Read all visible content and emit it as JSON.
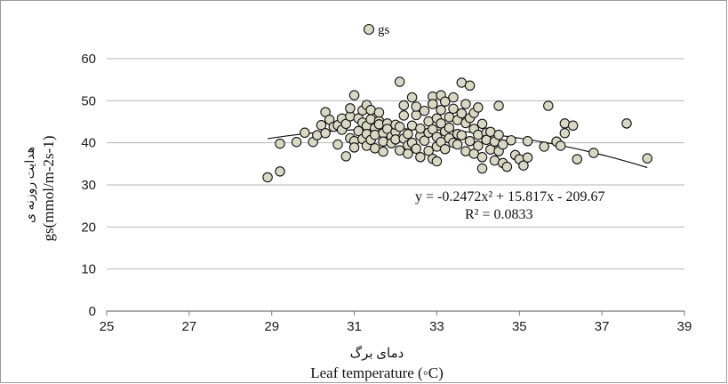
{
  "chart_data": {
    "type": "scatter",
    "title": "",
    "legend": {
      "label": "gs",
      "position": "top-center",
      "marker_color": "#d9d8c4"
    },
    "xlabel": {
      "fa": "دمای برگ",
      "en": "Leaf temperature (◦C)"
    },
    "ylabel": {
      "fa": "هدایت روزنه ی",
      "en": "gs(mmol/m-2s-1)"
    },
    "xlim": [
      25,
      39
    ],
    "ylim": [
      0,
      60
    ],
    "xticks": [
      25,
      27,
      29,
      31,
      33,
      35,
      37,
      39
    ],
    "yticks": [
      0,
      10,
      20,
      30,
      40,
      50,
      60
    ],
    "grid": "horizontal",
    "series": [
      {
        "name": "gs",
        "marker_color": "#d9d8c4",
        "points": [
          [
            28.9,
            31.8
          ],
          [
            29.2,
            33.2
          ],
          [
            29.2,
            39.8
          ],
          [
            29.6,
            40.2
          ],
          [
            29.8,
            42.4
          ],
          [
            30.0,
            40.2
          ],
          [
            30.1,
            41.8
          ],
          [
            30.2,
            44.2
          ],
          [
            30.3,
            47.3
          ],
          [
            30.3,
            42.3
          ],
          [
            30.4,
            45.5
          ],
          [
            30.5,
            43.8
          ],
          [
            30.6,
            44.2
          ],
          [
            30.6,
            39.6
          ],
          [
            30.7,
            45.8
          ],
          [
            30.7,
            43.1
          ],
          [
            30.8,
            36.8
          ],
          [
            30.8,
            44.5
          ],
          [
            30.9,
            46.3
          ],
          [
            30.9,
            48.2
          ],
          [
            30.9,
            41.1
          ],
          [
            31.0,
            51.3
          ],
          [
            31.0,
            40.4
          ],
          [
            31.0,
            38.9
          ],
          [
            31.1,
            45.8
          ],
          [
            31.1,
            42.8
          ],
          [
            31.2,
            44.8
          ],
          [
            31.2,
            47.7
          ],
          [
            31.2,
            40.9
          ],
          [
            31.3,
            44.0
          ],
          [
            31.3,
            42.1
          ],
          [
            31.3,
            49.0
          ],
          [
            31.3,
            39.3
          ],
          [
            31.4,
            45.6
          ],
          [
            31.4,
            47.8
          ],
          [
            31.4,
            40.7
          ],
          [
            31.5,
            43.5
          ],
          [
            31.5,
            41.9
          ],
          [
            31.5,
            38.7
          ],
          [
            31.6,
            45.2
          ],
          [
            31.6,
            47.2
          ],
          [
            31.6,
            44.4
          ],
          [
            31.7,
            42.3
          ],
          [
            31.7,
            40.3
          ],
          [
            31.7,
            37.9
          ],
          [
            31.8,
            44.6
          ],
          [
            31.8,
            43.3
          ],
          [
            31.9,
            41.5
          ],
          [
            31.9,
            39.9
          ],
          [
            32.0,
            42.6
          ],
          [
            32.0,
            40.8
          ],
          [
            32.0,
            44.3
          ],
          [
            32.1,
            54.5
          ],
          [
            32.1,
            43.8
          ],
          [
            32.1,
            38.2
          ],
          [
            32.2,
            46.5
          ],
          [
            32.2,
            41.0
          ],
          [
            32.2,
            48.9
          ],
          [
            32.3,
            39.4
          ],
          [
            32.3,
            37.4
          ],
          [
            32.3,
            42.1
          ],
          [
            32.4,
            50.8
          ],
          [
            32.4,
            44.1
          ],
          [
            32.4,
            40.0
          ],
          [
            32.5,
            46.6
          ],
          [
            32.5,
            48.6
          ],
          [
            32.5,
            38.6
          ],
          [
            32.6,
            41.6
          ],
          [
            32.6,
            43.4
          ],
          [
            32.6,
            36.6
          ],
          [
            32.7,
            47.6
          ],
          [
            32.7,
            40.5
          ],
          [
            32.8,
            42.4
          ],
          [
            32.8,
            45.1
          ],
          [
            32.8,
            38.1
          ],
          [
            32.9,
            51.0
          ],
          [
            32.9,
            49.2
          ],
          [
            32.9,
            43.2
          ],
          [
            32.9,
            36.2
          ],
          [
            33.0,
            45.8
          ],
          [
            33.0,
            41.4
          ],
          [
            33.0,
            39.1
          ],
          [
            33.0,
            35.6
          ],
          [
            33.1,
            51.3
          ],
          [
            33.1,
            47.8
          ],
          [
            33.1,
            44.6
          ],
          [
            33.1,
            40.2
          ],
          [
            33.2,
            42.7
          ],
          [
            33.2,
            49.8
          ],
          [
            33.2,
            38.5
          ],
          [
            33.3,
            46.1
          ],
          [
            33.3,
            43.6
          ],
          [
            33.3,
            41.1
          ],
          [
            33.4,
            50.8
          ],
          [
            33.4,
            48.1
          ],
          [
            33.4,
            40.0
          ],
          [
            33.5,
            45.4
          ],
          [
            33.5,
            42.1
          ],
          [
            33.5,
            39.6
          ],
          [
            33.6,
            54.3
          ],
          [
            33.6,
            47.0
          ],
          [
            33.6,
            41.8
          ],
          [
            33.7,
            44.7
          ],
          [
            33.7,
            49.2
          ],
          [
            33.7,
            38.0
          ],
          [
            33.8,
            53.6
          ],
          [
            33.8,
            45.9
          ],
          [
            33.8,
            40.4
          ],
          [
            33.9,
            43.3
          ],
          [
            33.9,
            47.1
          ],
          [
            33.9,
            37.4
          ],
          [
            34.0,
            48.4
          ],
          [
            34.0,
            41.9
          ],
          [
            34.0,
            39.3
          ],
          [
            34.1,
            44.5
          ],
          [
            34.1,
            36.6
          ],
          [
            34.1,
            33.9
          ],
          [
            34.2,
            42.4
          ],
          [
            34.2,
            40.7
          ],
          [
            34.3,
            38.4
          ],
          [
            34.3,
            42.6
          ],
          [
            34.4,
            35.8
          ],
          [
            34.4,
            40.3
          ],
          [
            34.5,
            48.8
          ],
          [
            34.5,
            41.9
          ],
          [
            34.5,
            38.0
          ],
          [
            34.6,
            35.2
          ],
          [
            34.6,
            39.6
          ],
          [
            34.7,
            34.3
          ],
          [
            34.8,
            40.6
          ],
          [
            34.9,
            37.1
          ],
          [
            35.0,
            36.1
          ],
          [
            35.1,
            34.6
          ],
          [
            35.2,
            40.4
          ],
          [
            35.2,
            36.5
          ],
          [
            35.6,
            39.1
          ],
          [
            35.7,
            48.8
          ],
          [
            35.9,
            40.3
          ],
          [
            36.0,
            39.3
          ],
          [
            36.1,
            42.3
          ],
          [
            36.1,
            44.6
          ],
          [
            36.3,
            44.1
          ],
          [
            36.4,
            36.1
          ],
          [
            36.8,
            37.6
          ],
          [
            37.6,
            44.6
          ],
          [
            38.1,
            36.3
          ]
        ]
      }
    ],
    "trendline": {
      "type": "polynomial",
      "coefficients": {
        "a": -0.2472,
        "b": 15.817,
        "c": -209.67
      },
      "x_range": [
        28.9,
        38.1
      ],
      "equation": "y = -0.2472x² + 15.817x - 209.67",
      "r2": "R² = 0.0833"
    }
  }
}
